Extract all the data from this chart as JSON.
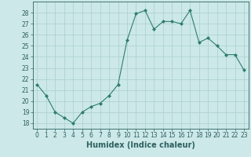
{
  "x": [
    0,
    1,
    2,
    3,
    4,
    5,
    6,
    7,
    8,
    9,
    10,
    11,
    12,
    13,
    14,
    15,
    16,
    17,
    18,
    19,
    20,
    21,
    22,
    23
  ],
  "y": [
    21.5,
    20.5,
    19.0,
    18.5,
    18.0,
    19.0,
    19.5,
    19.8,
    20.5,
    21.5,
    25.5,
    27.9,
    28.2,
    26.5,
    27.2,
    27.2,
    27.0,
    28.2,
    25.3,
    25.7,
    25.0,
    24.2,
    24.2,
    22.8
  ],
  "line_color": "#2e7d6e",
  "marker": "D",
  "marker_size": 2.0,
  "bg_color": "#cce8e8",
  "grid_color": "#aacfcf",
  "xlabel": "Humidex (Indice chaleur)",
  "ylim": [
    17.5,
    29.0
  ],
  "xlim": [
    -0.5,
    23.5
  ],
  "yticks": [
    18,
    19,
    20,
    21,
    22,
    23,
    24,
    25,
    26,
    27,
    28
  ],
  "xticks": [
    0,
    1,
    2,
    3,
    4,
    5,
    6,
    7,
    8,
    9,
    10,
    11,
    12,
    13,
    14,
    15,
    16,
    17,
    18,
    19,
    20,
    21,
    22,
    23
  ],
  "tick_fontsize": 5.5,
  "xlabel_fontsize": 7.0,
  "tick_color": "#2e6060",
  "axis_color": "#2e6060",
  "line_width": 0.8
}
